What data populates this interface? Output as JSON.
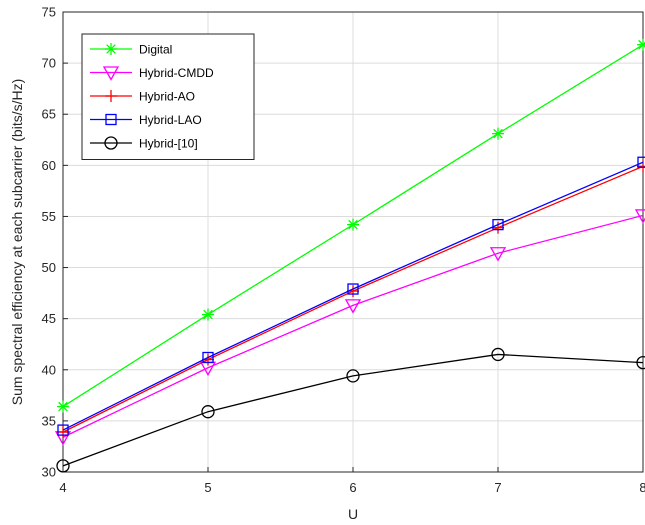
{
  "chart_data": {
    "type": "line",
    "title": "",
    "xlabel": "U",
    "ylabel": "Sum spectral efficiency at each subcarrier (bits/s/Hz)",
    "x": [
      4,
      5,
      6,
      7,
      8
    ],
    "xlim": [
      4,
      8
    ],
    "ylim": [
      30,
      75
    ],
    "xticks": [
      4,
      5,
      6,
      7,
      8
    ],
    "yticks": [
      30,
      35,
      40,
      45,
      50,
      55,
      60,
      65,
      70,
      75
    ],
    "grid": true,
    "legend_position": "top-left",
    "series": [
      {
        "name": "Digital",
        "values": [
          36.4,
          45.4,
          54.2,
          63.1,
          71.8
        ],
        "color": "#00ff00",
        "marker": "asterisk"
      },
      {
        "name": "Hybrid-CMDD",
        "values": [
          33.4,
          40.2,
          46.3,
          51.4,
          55.1
        ],
        "color": "#ff00ff",
        "marker": "triangle-down"
      },
      {
        "name": "Hybrid-AO",
        "values": [
          33.9,
          41.0,
          47.7,
          53.9,
          59.9
        ],
        "color": "#ff0000",
        "marker": "plus"
      },
      {
        "name": "Hybrid-LAO",
        "values": [
          34.1,
          41.2,
          47.9,
          54.2,
          60.3
        ],
        "color": "#0000ff",
        "marker": "square"
      },
      {
        "name": "Hybrid-[10]",
        "values": [
          30.6,
          35.9,
          39.4,
          41.5,
          40.7
        ],
        "color": "#000000",
        "marker": "circle"
      }
    ]
  }
}
